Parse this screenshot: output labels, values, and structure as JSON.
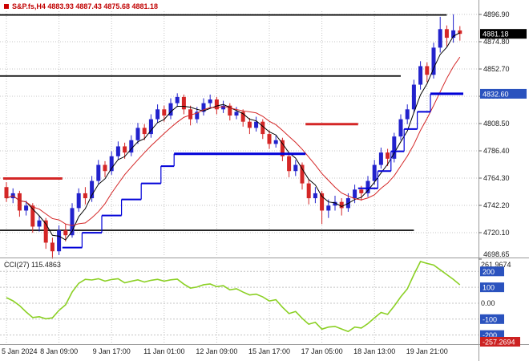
{
  "header": {
    "symbol_line": "S&P.fs,H4 4883.93 4887.43 4875.68 4881.18"
  },
  "indicator_label": "CCI(27) 115.4863",
  "colors": {
    "up_candle": "#2222cc",
    "down_candle": "#d42626",
    "ma_fast": "#000000",
    "ma_slow": "#d42626",
    "step_up": "#0000d8",
    "step_down": "#d42626",
    "level_line": "#000000",
    "cci_line": "#8bd024",
    "axis_box_blue": "#2a52be",
    "axis_box_black": "#000000",
    "axis_box_red": "#cc2222",
    "grid": "#c4c4c4",
    "axis_text": "#1a1a1a"
  },
  "chart_data": [
    {
      "type": "candlestick",
      "symbol": "S&P.fs",
      "timeframe": "H4",
      "ohlc_display": {
        "open": "4883.93",
        "high": "4887.43",
        "low": "4875.68",
        "close": "4881.18"
      },
      "price_ticks": [
        "4896.90",
        "4874.80",
        "4852.70",
        "4830.60",
        "4808.50",
        "4786.40",
        "4764.30",
        "4742.20",
        "4720.10",
        "4698.65"
      ],
      "time_labels": [
        {
          "text": "5 Jan 2024",
          "bar": 0
        },
        {
          "text": "8 Jan 09:00",
          "bar": 8
        },
        {
          "text": "9 Jan 17:00",
          "bar": 16
        },
        {
          "text": "11 Jan 01:00",
          "bar": 24
        },
        {
          "text": "12 Jan 09:00",
          "bar": 32
        },
        {
          "text": "15 Jan 17:00",
          "bar": 40
        },
        {
          "text": "17 Jan 05:00",
          "bar": 48
        },
        {
          "text": "18 Jan 13:00",
          "bar": 56
        },
        {
          "text": "19 Jan 21:00",
          "bar": 64
        }
      ],
      "current_price_label": "4881.18",
      "blue_level_label": "4832.60",
      "ylim": [
        4698.65,
        4896.9
      ],
      "candles": [
        [
          4757,
          4761,
          4745,
          4748
        ],
        [
          4748,
          4756,
          4744,
          4752
        ],
        [
          4752,
          4754,
          4733,
          4738
        ],
        [
          4738,
          4746,
          4734,
          4742
        ],
        [
          4742,
          4744,
          4720,
          4725
        ],
        [
          4725,
          4734,
          4721,
          4730
        ],
        [
          4730,
          4732,
          4707,
          4712
        ],
        [
          4712,
          4716,
          4699,
          4705
        ],
        [
          4705,
          4726,
          4702,
          4722
        ],
        [
          4722,
          4727,
          4713,
          4718
        ],
        [
          4718,
          4744,
          4716,
          4740
        ],
        [
          4740,
          4756,
          4737,
          4752
        ],
        [
          4752,
          4757,
          4743,
          4748
        ],
        [
          4748,
          4766,
          4745,
          4762
        ],
        [
          4762,
          4779,
          4759,
          4775
        ],
        [
          4775,
          4778,
          4765,
          4770
        ],
        [
          4770,
          4786,
          4767,
          4782
        ],
        [
          4782,
          4794,
          4779,
          4790
        ],
        [
          4790,
          4793,
          4780,
          4785
        ],
        [
          4785,
          4799,
          4782,
          4795
        ],
        [
          4795,
          4809,
          4792,
          4805
        ],
        [
          4805,
          4808,
          4795,
          4800
        ],
        [
          4800,
          4816,
          4797,
          4812
        ],
        [
          4812,
          4824,
          4809,
          4820
        ],
        [
          4820,
          4823,
          4810,
          4815
        ],
        [
          4815,
          4829,
          4812,
          4825
        ],
        [
          4825,
          4833,
          4822,
          4830
        ],
        [
          4830,
          4832,
          4816,
          4820
        ],
        [
          4820,
          4823,
          4807,
          4812
        ],
        [
          4812,
          4822,
          4809,
          4818
        ],
        [
          4818,
          4829,
          4815,
          4825
        ],
        [
          4825,
          4832,
          4821,
          4828
        ],
        [
          4828,
          4830,
          4816,
          4820
        ],
        [
          4820,
          4827,
          4817,
          4823
        ],
        [
          4823,
          4825,
          4811,
          4815
        ],
        [
          4815,
          4822,
          4812,
          4818
        ],
        [
          4818,
          4820,
          4806,
          4810
        ],
        [
          4810,
          4813,
          4800,
          4805
        ],
        [
          4805,
          4814,
          4802,
          4810
        ],
        [
          4810,
          4812,
          4796,
          4800
        ],
        [
          4800,
          4803,
          4788,
          4792
        ],
        [
          4792,
          4799,
          4789,
          4795
        ],
        [
          4795,
          4797,
          4778,
          4782
        ],
        [
          4782,
          4785,
          4765,
          4770
        ],
        [
          4770,
          4779,
          4766,
          4775
        ],
        [
          4775,
          4777,
          4755,
          4760
        ],
        [
          4760,
          4763,
          4743,
          4748
        ],
        [
          4748,
          4757,
          4744,
          4752
        ],
        [
          4752,
          4754,
          4727,
          4738
        ],
        [
          4738,
          4747,
          4732,
          4742
        ],
        [
          4742,
          4750,
          4738,
          4745
        ],
        [
          4745,
          4748,
          4734,
          4740
        ],
        [
          4740,
          4752,
          4737,
          4748
        ],
        [
          4748,
          4759,
          4744,
          4755
        ],
        [
          4755,
          4758,
          4746,
          4752
        ],
        [
          4752,
          4766,
          4749,
          4762
        ],
        [
          4762,
          4779,
          4759,
          4775
        ],
        [
          4775,
          4789,
          4772,
          4785
        ],
        [
          4785,
          4788,
          4774,
          4780
        ],
        [
          4780,
          4801,
          4777,
          4798
        ],
        [
          4798,
          4816,
          4795,
          4812
        ],
        [
          4812,
          4824,
          4808,
          4820
        ],
        [
          4820,
          4844,
          4817,
          4840
        ],
        [
          4840,
          4859,
          4836,
          4855
        ],
        [
          4855,
          4858,
          4842,
          4848
        ],
        [
          4848,
          4874,
          4845,
          4870
        ],
        [
          4870,
          4895,
          4866,
          4885
        ],
        [
          4885,
          4888,
          4871,
          4878
        ],
        [
          4878,
          4897,
          4874,
          4884
        ],
        [
          4883.93,
          4887.43,
          4875.68,
          4881.18
        ]
      ],
      "levels_black": [
        {
          "price": 4896.5,
          "to_bar": 67
        },
        {
          "price": 4847.0,
          "to_bar": 60
        },
        {
          "price": 4722.0,
          "to_bar": 62
        }
      ],
      "steps_blue": [
        [
          9,
          12,
          4708,
          2
        ],
        [
          12,
          15,
          4720,
          2
        ],
        [
          15,
          18,
          4734,
          2
        ],
        [
          18,
          21,
          4747,
          2
        ],
        [
          21,
          24,
          4760,
          2
        ],
        [
          24,
          26,
          4774,
          2
        ],
        [
          26,
          46,
          4784,
          3
        ],
        [
          54,
          57,
          4756,
          2
        ],
        [
          57,
          59,
          4770,
          2
        ],
        [
          59,
          61,
          4786,
          2
        ],
        [
          61,
          63,
          4804,
          2
        ],
        [
          63,
          65,
          4818,
          2
        ],
        [
          65,
          70,
          4832.6,
          3
        ]
      ],
      "steps_red": [
        [
          0,
          9,
          4764,
          3
        ],
        [
          46,
          54,
          4808,
          3
        ]
      ]
    },
    {
      "type": "line",
      "name": "CCI(27)",
      "period": 27,
      "current_value": "115.4863",
      "levels": [
        200,
        100,
        0,
        -100,
        -200
      ],
      "axis": {
        "max": "261.9674",
        "min": "-257.2694",
        "zero": "0.00",
        "boxes": [
          "200",
          "100",
          "-100",
          "-200"
        ]
      },
      "ylim": [
        -257.2694,
        261.9674
      ],
      "values": [
        35,
        15,
        -15,
        -55,
        -90,
        -85,
        -98,
        -92,
        -45,
        -10,
        70,
        125,
        150,
        146,
        154,
        139,
        149,
        154,
        128,
        138,
        147,
        133,
        144,
        150,
        139,
        147,
        151,
        120,
        95,
        102,
        116,
        121,
        104,
        110,
        84,
        91,
        70,
        52,
        57,
        40,
        14,
        22,
        -25,
        -65,
        -52,
        -95,
        -132,
        -120,
        -163,
        -150,
        -146,
        -162,
        -178,
        -150,
        -156,
        -128,
        -92,
        -58,
        -70,
        -18,
        40,
        90,
        180,
        261.9674,
        250,
        240,
        210,
        180,
        150,
        115.4863
      ]
    }
  ]
}
